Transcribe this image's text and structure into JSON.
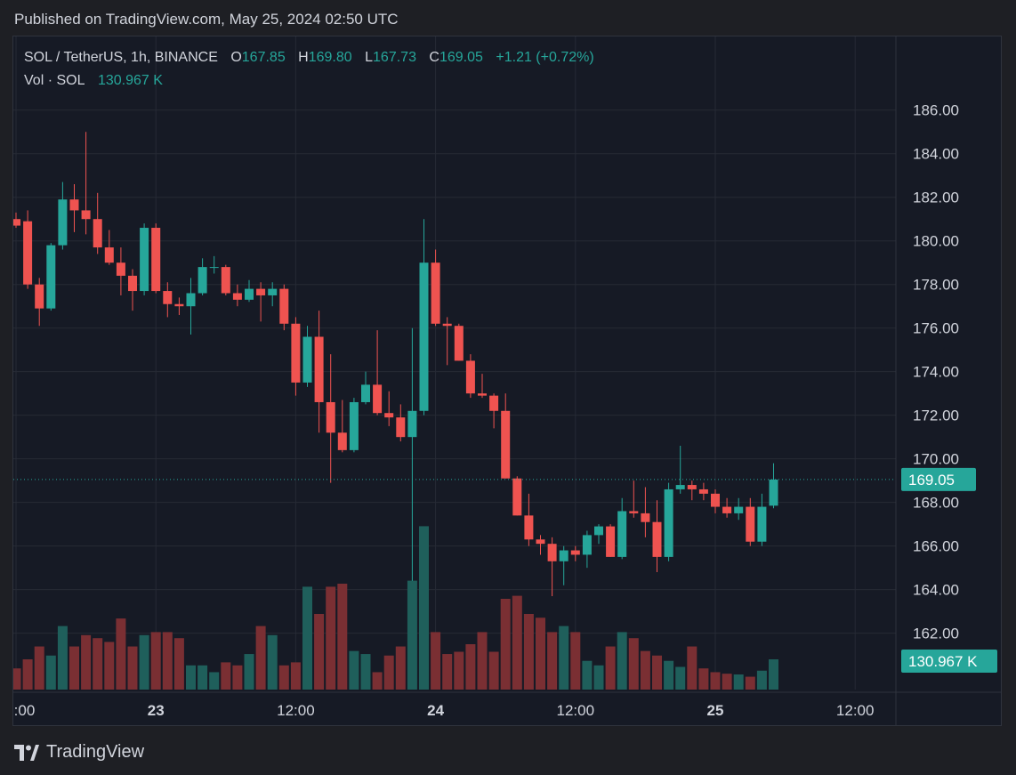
{
  "published": "Published on TradingView.com, May 25, 2024 02:50 UTC",
  "legend": {
    "symbol": "SOL / TetherUS, 1h, BINANCE",
    "o_label": "O",
    "o": "167.85",
    "h_label": "H",
    "h": "169.80",
    "l_label": "L",
    "l": "167.73",
    "c_label": "C",
    "c": "169.05",
    "change": "+1.21 (+0.72%)",
    "vol_label": "Vol · SOL",
    "vol": "130.967 K"
  },
  "last_price_label": "169.05",
  "last_volume_label": "130.967 K",
  "brand": "TradingView",
  "colors": {
    "up": "#26a69a",
    "down": "#ef5350",
    "vol_up": "#1f5f5b",
    "vol_down": "#7a2f33",
    "bg": "#161a25",
    "grid": "#262a35",
    "text": "#d1d4dc"
  },
  "chart_data": {
    "type": "candlestick",
    "symbol": "SOL / TetherUS",
    "interval": "1h",
    "exchange": "BINANCE",
    "y_ticks": [
      "186.00",
      "184.00",
      "182.00",
      "180.00",
      "178.00",
      "176.00",
      "174.00",
      "172.00",
      "170.00",
      "168.00",
      "166.00",
      "164.00",
      "162.00"
    ],
    "ylim": [
      161.25,
      187.5
    ],
    "x_ticks": [
      {
        "label": "12:00",
        "bar": 0
      },
      {
        "label": "23",
        "bar": 12
      },
      {
        "label": "12:00",
        "bar": 24
      },
      {
        "label": "24",
        "bar": 36
      },
      {
        "label": "12:00",
        "bar": 48
      },
      {
        "label": "25",
        "bar": 60
      },
      {
        "label": "12:00",
        "bar": 72
      }
    ],
    "candles": [
      [
        181.0,
        181.3,
        180.6,
        180.7
      ],
      [
        180.9,
        181.4,
        177.8,
        178.0
      ],
      [
        178.0,
        178.3,
        176.1,
        176.9
      ],
      [
        176.9,
        179.9,
        176.8,
        179.8
      ],
      [
        179.8,
        182.7,
        179.6,
        181.9
      ],
      [
        181.9,
        182.6,
        180.4,
        181.4
      ],
      [
        181.4,
        185.0,
        180.3,
        181.0
      ],
      [
        181.0,
        182.2,
        179.4,
        179.7
      ],
      [
        179.7,
        180.5,
        178.9,
        179.0
      ],
      [
        179.0,
        179.7,
        177.5,
        178.4
      ],
      [
        178.4,
        178.7,
        176.8,
        177.7
      ],
      [
        177.7,
        180.8,
        177.5,
        180.6
      ],
      [
        180.6,
        180.8,
        177.6,
        177.7
      ],
      [
        177.7,
        178.1,
        176.5,
        177.1
      ],
      [
        177.1,
        177.4,
        176.6,
        177.0
      ],
      [
        177.0,
        178.3,
        175.7,
        177.6
      ],
      [
        177.6,
        179.2,
        177.5,
        178.8
      ],
      [
        178.8,
        179.3,
        178.5,
        178.8
      ],
      [
        178.8,
        178.9,
        177.5,
        177.6
      ],
      [
        177.6,
        178.0,
        177.0,
        177.3
      ],
      [
        177.3,
        178.2,
        177.2,
        177.8
      ],
      [
        177.8,
        178.1,
        176.3,
        177.5
      ],
      [
        177.5,
        178.1,
        177.0,
        177.8
      ],
      [
        177.8,
        178.0,
        175.9,
        176.2
      ],
      [
        176.2,
        176.5,
        172.9,
        173.5
      ],
      [
        173.5,
        176.1,
        173.3,
        175.6
      ],
      [
        175.6,
        176.8,
        171.2,
        172.6
      ],
      [
        172.6,
        174.8,
        168.9,
        171.2
      ],
      [
        171.2,
        172.7,
        170.3,
        170.4
      ],
      [
        170.4,
        172.8,
        170.3,
        172.6
      ],
      [
        172.6,
        174.0,
        172.5,
        173.4
      ],
      [
        173.4,
        175.9,
        172.0,
        172.1
      ],
      [
        172.1,
        173.1,
        171.5,
        171.9
      ],
      [
        171.9,
        172.5,
        170.8,
        171.0
      ],
      [
        171.0,
        176.0,
        164.4,
        172.2
      ],
      [
        172.2,
        181.0,
        172.0,
        179.0
      ],
      [
        179.0,
        179.6,
        176.1,
        176.2
      ],
      [
        176.2,
        176.5,
        174.3,
        176.1
      ],
      [
        176.1,
        176.2,
        174.5,
        174.5
      ],
      [
        174.5,
        174.8,
        172.8,
        173.0
      ],
      [
        173.0,
        173.9,
        172.8,
        172.9
      ],
      [
        172.9,
        173.0,
        171.4,
        172.2
      ],
      [
        172.2,
        173.0,
        169.1,
        169.1
      ],
      [
        169.1,
        169.2,
        167.4,
        167.4
      ],
      [
        167.4,
        168.4,
        166.0,
        166.3
      ],
      [
        166.3,
        166.5,
        165.6,
        166.1
      ],
      [
        166.1,
        166.4,
        163.7,
        165.3
      ],
      [
        165.3,
        166.0,
        164.2,
        165.8
      ],
      [
        165.8,
        166.0,
        165.3,
        165.6
      ],
      [
        165.6,
        166.7,
        165.0,
        166.5
      ],
      [
        166.5,
        167.0,
        166.1,
        166.9
      ],
      [
        166.9,
        167.0,
        165.5,
        165.5
      ],
      [
        165.5,
        168.2,
        165.4,
        167.6
      ],
      [
        167.6,
        169.0,
        167.3,
        167.5
      ],
      [
        167.5,
        168.7,
        166.4,
        167.1
      ],
      [
        167.1,
        168.1,
        164.8,
        165.5
      ],
      [
        165.5,
        168.9,
        165.3,
        168.6
      ],
      [
        168.6,
        170.6,
        168.4,
        168.8
      ],
      [
        168.8,
        169.0,
        168.1,
        168.6
      ],
      [
        168.6,
        168.9,
        168.1,
        168.4
      ],
      [
        168.4,
        168.6,
        167.5,
        167.8
      ],
      [
        167.8,
        168.2,
        167.3,
        167.5
      ],
      [
        167.5,
        168.2,
        167.2,
        167.8
      ],
      [
        167.8,
        168.2,
        166.0,
        166.2
      ],
      [
        166.2,
        168.4,
        166.0,
        167.8
      ],
      [
        167.85,
        169.8,
        167.73,
        169.05
      ]
    ],
    "volume_units": "K SOL (relative)",
    "volumes": [
      28,
      40,
      57,
      45,
      84,
      57,
      72,
      68,
      63,
      94,
      57,
      72,
      76,
      76,
      68,
      32,
      32,
      23,
      36,
      32,
      47,
      84,
      72,
      32,
      36,
      136,
      100,
      136,
      140,
      51,
      47,
      23,
      45,
      57,
      144,
      216,
      76,
      47,
      50,
      60,
      76,
      50,
      120,
      124,
      100,
      95,
      76,
      84,
      76,
      38,
      32,
      57,
      76,
      68,
      51,
      45,
      38,
      30,
      57,
      28,
      23,
      21,
      20,
      17,
      25,
      40
    ]
  }
}
